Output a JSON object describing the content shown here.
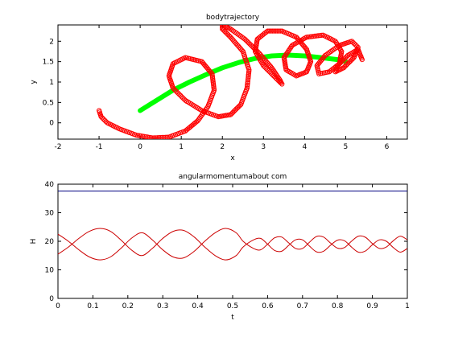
{
  "chart_data": [
    {
      "type": "scatter",
      "title": "bodytrajectory",
      "xlabel": "x",
      "ylabel": "y",
      "xlim": [
        -2,
        6.5
      ],
      "ylim": [
        -0.4,
        2.4
      ],
      "xticks": [
        -2,
        -1,
        0,
        1,
        2,
        3,
        4,
        5,
        6
      ],
      "yticks": [
        0,
        0.5,
        1,
        1.5,
        2
      ],
      "grid": false,
      "series": [
        {
          "color": "#00ff00",
          "style": "thick-line",
          "x": [
            0.0,
            0.4,
            0.8,
            1.2,
            1.6,
            2.0,
            2.4,
            2.8,
            3.2,
            3.6,
            4.0,
            4.4,
            4.8,
            5.0
          ],
          "y": [
            0.3,
            0.55,
            0.8,
            1.0,
            1.18,
            1.35,
            1.48,
            1.58,
            1.64,
            1.66,
            1.64,
            1.6,
            1.55,
            1.5
          ]
        },
        {
          "color": "#ff0000",
          "style": "circle-markers",
          "x": [
            -1.0,
            -0.95,
            -0.8,
            -0.5,
            -0.1,
            0.3,
            0.7,
            1.1,
            1.4,
            1.65,
            1.8,
            1.75,
            1.5,
            1.1,
            0.8,
            0.7,
            0.8,
            1.1,
            1.5,
            1.9,
            2.2,
            2.45,
            2.6,
            2.65,
            2.5,
            2.2,
            2.0,
            2.0,
            2.2,
            2.55,
            2.9,
            3.2,
            3.4,
            3.45,
            3.3,
            3.0,
            2.8,
            2.85,
            3.1,
            3.45,
            3.8,
            4.05,
            4.15,
            4.05,
            3.8,
            3.55,
            3.5,
            3.7,
            4.05,
            4.45,
            4.75,
            4.9,
            4.85,
            4.6,
            4.35,
            4.3,
            4.5,
            4.85,
            5.15,
            5.3,
            5.2,
            4.95,
            4.75,
            4.8,
            5.05,
            5.3,
            5.4
          ],
          "y": [
            0.3,
            0.15,
            0.0,
            -0.15,
            -0.3,
            -0.37,
            -0.35,
            -0.2,
            0.05,
            0.4,
            0.8,
            1.2,
            1.5,
            1.6,
            1.45,
            1.15,
            0.85,
            0.55,
            0.3,
            0.15,
            0.2,
            0.45,
            0.85,
            1.3,
            1.75,
            2.1,
            2.3,
            2.4,
            2.3,
            2.05,
            1.7,
            1.35,
            1.05,
            0.95,
            1.1,
            1.4,
            1.75,
            2.05,
            2.25,
            2.25,
            2.1,
            1.8,
            1.5,
            1.25,
            1.15,
            1.3,
            1.6,
            1.9,
            2.1,
            2.15,
            2.0,
            1.75,
            1.45,
            1.25,
            1.2,
            1.4,
            1.65,
            1.9,
            2.0,
            1.85,
            1.6,
            1.35,
            1.25,
            1.4,
            1.65,
            1.8,
            1.55
          ]
        }
      ]
    },
    {
      "type": "line",
      "title": "angularmomentumabout com",
      "xlabel": "t",
      "ylabel": "H",
      "xlim": [
        0,
        1
      ],
      "ylim": [
        0,
        40
      ],
      "xticks": [
        0,
        0.1,
        0.2,
        0.3,
        0.4,
        0.5,
        0.6,
        0.7,
        0.8,
        0.9,
        1
      ],
      "yticks": [
        0,
        10,
        20,
        30,
        40
      ],
      "grid": false,
      "series": [
        {
          "color": "#000080",
          "x": [
            0,
            1
          ],
          "y": [
            37.6,
            37.6
          ]
        },
        {
          "color": "#cc0000",
          "x": [
            0,
            0.03,
            0.06,
            0.09,
            0.12,
            0.15,
            0.18,
            0.21,
            0.24,
            0.27,
            0.3,
            0.33,
            0.36,
            0.39,
            0.42,
            0.45,
            0.48,
            0.51,
            0.53,
            0.56,
            0.58,
            0.6,
            0.62,
            0.64,
            0.66,
            0.68,
            0.7,
            0.72,
            0.74,
            0.76,
            0.78,
            0.8,
            0.82,
            0.84,
            0.86,
            0.88,
            0.9,
            0.92,
            0.94,
            0.96,
            0.98,
            1.0
          ],
          "y": [
            15.5,
            18.0,
            21.0,
            23.5,
            24.5,
            23.5,
            20.5,
            17.0,
            15.0,
            17.5,
            21.0,
            23.5,
            23.8,
            21.5,
            18.0,
            15.0,
            13.5,
            15.0,
            18.0,
            20.5,
            21.0,
            19.0,
            16.8,
            16.5,
            18.5,
            20.5,
            20.5,
            18.3,
            16.3,
            16.5,
            18.6,
            20.4,
            20.2,
            18.0,
            16.2,
            16.6,
            18.8,
            20.5,
            20.0,
            17.8,
            16.2,
            17.5
          ]
        },
        {
          "color": "#cc0000",
          "x": [
            0,
            0.03,
            0.06,
            0.09,
            0.12,
            0.15,
            0.18,
            0.21,
            0.24,
            0.27,
            0.3,
            0.33,
            0.36,
            0.39,
            0.42,
            0.45,
            0.48,
            0.51,
            0.53,
            0.56,
            0.58,
            0.6,
            0.62,
            0.64,
            0.66,
            0.68,
            0.7,
            0.72,
            0.74,
            0.76,
            0.78,
            0.8,
            0.82,
            0.84,
            0.86,
            0.88,
            0.9,
            0.92,
            0.94,
            0.96,
            0.98,
            1.0
          ],
          "y": [
            22.5,
            20.0,
            17.0,
            14.5,
            13.5,
            14.5,
            17.5,
            21.0,
            23.0,
            20.5,
            17.0,
            14.5,
            14.2,
            16.5,
            20.0,
            23.0,
            24.5,
            23.0,
            20.0,
            17.5,
            17.0,
            19.0,
            21.2,
            21.5,
            19.5,
            17.5,
            17.5,
            19.7,
            21.7,
            21.5,
            19.4,
            17.6,
            17.8,
            20.0,
            21.8,
            21.4,
            19.2,
            17.5,
            18.0,
            20.2,
            21.8,
            20.5
          ]
        }
      ]
    }
  ]
}
